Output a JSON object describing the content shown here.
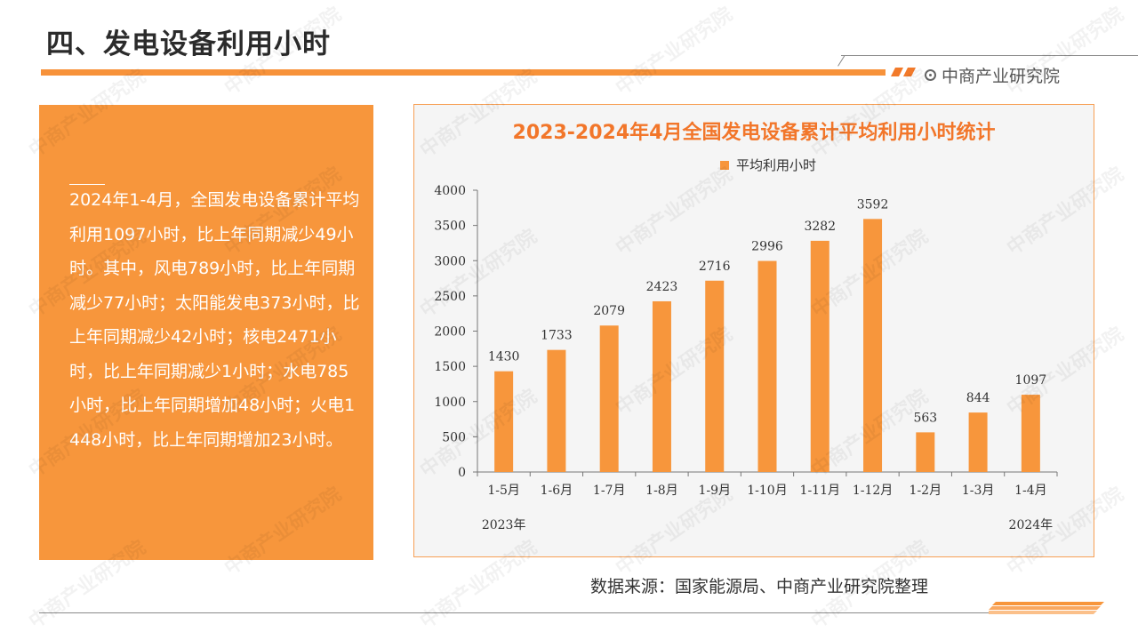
{
  "page": {
    "title": "四、发电设备利用小时",
    "brand": "中商产业研究院",
    "source": "数据来源：国家能源局、中商产业研究院整理",
    "watermark": "中商产业研究院"
  },
  "summary": {
    "text": "2024年1-4月，全国发电设备累计平均利用1097小时，比上年同期减少49小时。其中，风电789小时，比上年同期减少77小时；太阳能发电373小时，比上年同期减少42小时；核电2471小时，比上年同期减少1小时；水电785小时，比上年同期增加48小时；火电1448小时，比上年同期增加23小时。"
  },
  "colors": {
    "accent": "#f7963c",
    "title": "#f2762a"
  },
  "chart_data": {
    "type": "bar",
    "title": "2023-2024年4月全国发电设备累计平均利用小时统计",
    "categories": [
      "1-5月",
      "1-6月",
      "1-7月",
      "1-8月",
      "1-9月",
      "1-10月",
      "1-11月",
      "1-12月",
      "1-2月",
      "1-3月",
      "1-4月"
    ],
    "series": [
      {
        "name": "平均利用小时",
        "values": [
          1430,
          1733,
          2079,
          2423,
          2716,
          2996,
          3282,
          3592,
          563,
          844,
          1097
        ]
      }
    ],
    "year_labels": [
      {
        "label": "2023年",
        "category_index": 0
      },
      {
        "label": "2024年",
        "category_index": 10
      }
    ],
    "ylim": [
      0,
      4000
    ],
    "yticks": [
      0,
      500,
      1000,
      1500,
      2000,
      2500,
      3000,
      3500,
      4000
    ],
    "grid": false,
    "legend_position": "top-center",
    "data_labels": true
  }
}
